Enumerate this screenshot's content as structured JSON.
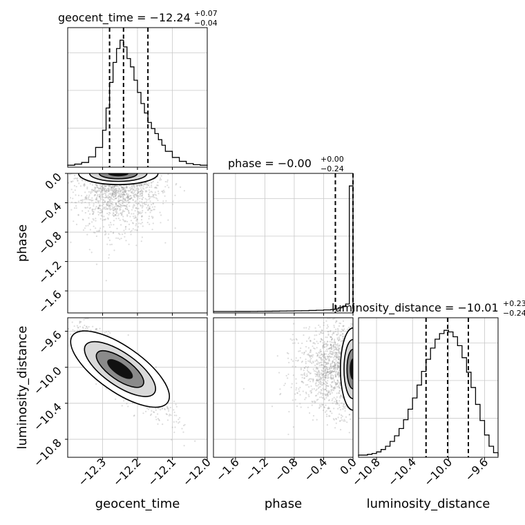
{
  "chart_data": {
    "type": "corner",
    "parameters": [
      "geocent_time",
      "phase",
      "luminosity_distance"
    ],
    "titles": [
      {
        "main": "geocent_time = −12.24",
        "plus": "+0.07",
        "minus": "−0.04"
      },
      {
        "main": "phase = −0.00",
        "plus": "+0.00",
        "minus": "−0.24"
      },
      {
        "main": "luminosity_distance = −10.01",
        "plus": "+0.23",
        "minus": "−0.24"
      }
    ],
    "ranges": {
      "geocent_time": [
        -12.4,
        -12.0
      ],
      "phase": [
        -1.9,
        0.0
      ],
      "luminosity_distance": [
        -11.0,
        -9.45
      ]
    },
    "ticks": {
      "geocent_time": [
        "−12.3",
        "−12.2",
        "−12.1",
        "−12.0"
      ],
      "geocent_time_values": [
        -12.3,
        -12.2,
        -12.1,
        -12.0
      ],
      "phase": [
        "−1.6",
        "−1.2",
        "−0.8",
        "−0.4",
        "0.0"
      ],
      "phase_values": [
        -1.6,
        -1.2,
        -0.8,
        -0.4,
        0.0
      ],
      "luminosity_distance": [
        "−10.8",
        "−10.4",
        "−10.0",
        "−9.6"
      ],
      "luminosity_distance_values": [
        -10.8,
        -10.4,
        -10.0,
        -9.6
      ]
    },
    "quantiles": {
      "geocent_time": [
        -12.28,
        -12.24,
        -12.17
      ],
      "phase": [
        -0.24,
        -0.0
      ],
      "luminosity_distance": [
        -10.25,
        -10.01,
        -9.78
      ]
    },
    "histograms": {
      "geocent_time": {
        "edges": [
          -12.4,
          -12.38,
          -12.36,
          -12.34,
          -12.32,
          -12.3,
          -12.29,
          -12.28,
          -12.27,
          -12.26,
          -12.25,
          -12.24,
          -12.23,
          -12.22,
          -12.21,
          -12.2,
          -12.19,
          -12.18,
          -12.17,
          -12.16,
          -12.15,
          -12.14,
          -12.13,
          -12.12,
          -12.1,
          -12.08,
          -12.06,
          -12.04,
          -12.02,
          -12.0
        ],
        "counts": [
          1,
          3,
          6,
          16,
          33,
          64,
          104,
          150,
          186,
          211,
          226,
          214,
          193,
          178,
          154,
          132,
          112,
          95,
          78,
          67,
          58,
          47,
          37,
          26,
          15,
          8,
          4,
          2,
          1
        ]
      },
      "phase": {
        "edges": [
          -1.9,
          -1.8,
          -1.7,
          -1.6,
          -1.5,
          -1.4,
          -1.3,
          -1.2,
          -1.1,
          -1.0,
          -0.9,
          -0.8,
          -0.7,
          -0.6,
          -0.5,
          -0.4,
          -0.3,
          -0.25,
          -0.2,
          -0.15,
          -0.1,
          -0.05,
          0.0
        ],
        "counts": [
          1,
          1,
          1,
          2,
          2,
          3,
          4,
          5,
          6,
          8,
          10,
          12,
          14,
          17,
          21,
          26,
          33,
          40,
          60,
          80,
          120,
          2000
        ]
      },
      "luminosity_distance": {
        "edges": [
          -11.0,
          -10.95,
          -10.9,
          -10.85,
          -10.8,
          -10.75,
          -10.7,
          -10.65,
          -10.6,
          -10.55,
          -10.5,
          -10.45,
          -10.4,
          -10.35,
          -10.3,
          -10.25,
          -10.2,
          -10.15,
          -10.1,
          -10.05,
          -10.0,
          -9.95,
          -9.9,
          -9.85,
          -9.8,
          -9.75,
          -9.7,
          -9.65,
          -9.6,
          -9.55,
          -9.5,
          -9.45
        ],
        "counts": [
          1,
          1,
          2,
          3,
          5,
          8,
          12,
          18,
          25,
          34,
          45,
          58,
          72,
          88,
          105,
          120,
          134,
          145,
          152,
          156,
          154,
          148,
          137,
          122,
          104,
          85,
          64,
          44,
          26,
          12,
          4
        ]
      }
    },
    "pairs": [
      {
        "x": "geocent_time",
        "y": "phase",
        "center": [
          -12.255,
          -0.04
        ],
        "spread": [
          0.06,
          0.32
        ],
        "rho": 0.0
      },
      {
        "x": "geocent_time",
        "y": "luminosity_distance",
        "center": [
          -12.25,
          -10.02
        ],
        "spread": [
          0.065,
          0.24
        ],
        "rho": -0.85
      },
      {
        "x": "phase",
        "y": "luminosity_distance",
        "center": [
          -0.02,
          -10.02
        ],
        "spread": [
          0.32,
          0.24
        ],
        "rho": 0.0
      }
    ]
  }
}
